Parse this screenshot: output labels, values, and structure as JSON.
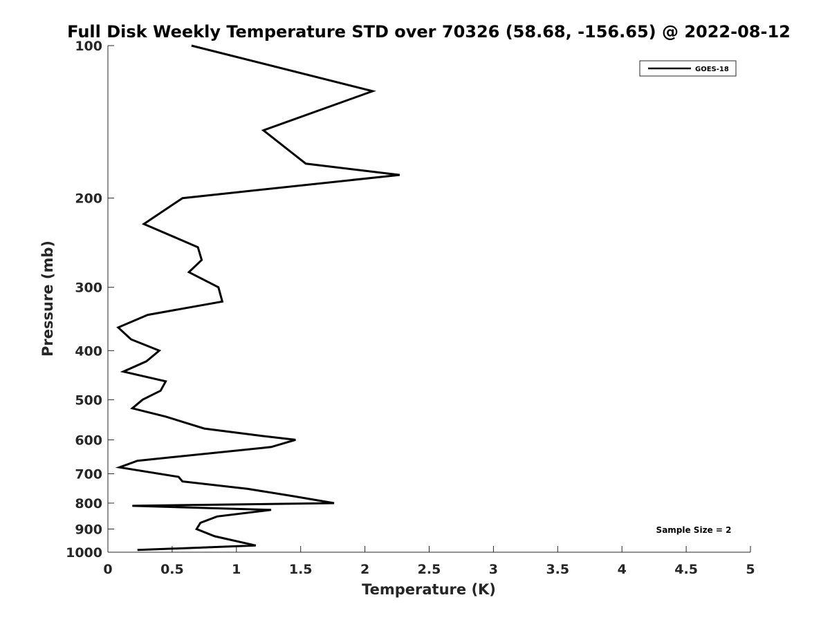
{
  "chart_data": {
    "type": "line",
    "title": "Full Disk Weekly Temperature STD over 70326 (58.68, -156.65) @ 2022-08-12",
    "xlabel": "Temperature (K)",
    "ylabel": "Pressure (mb)",
    "xlim": [
      0,
      5
    ],
    "ylim": [
      100,
      1000
    ],
    "y_scale": "log",
    "y_reversed": true,
    "x_ticks": [
      "0",
      "0.5",
      "1",
      "1.5",
      "2",
      "2.5",
      "3",
      "3.5",
      "4",
      "4.5",
      "5"
    ],
    "y_ticks": [
      100,
      200,
      300,
      400,
      500,
      600,
      700,
      800,
      900,
      1000
    ],
    "grid": false,
    "legend_position": "top-right",
    "annotation": "Sample Size = 2",
    "series": [
      {
        "name": "GOES-18",
        "color": "#000000",
        "x": [
          0.65,
          2.06,
          1.21,
          1.54,
          2.27,
          0.58,
          0.28,
          0.7,
          0.73,
          0.63,
          0.86,
          0.89,
          0.31,
          0.08,
          0.18,
          0.4,
          0.3,
          0.12,
          0.45,
          0.41,
          0.27,
          0.19,
          0.45,
          0.75,
          1.21,
          1.46,
          1.27,
          0.23,
          0.09,
          0.55,
          0.58,
          1.09,
          1.44,
          1.76,
          0.19,
          1.27,
          0.85,
          0.72,
          0.69,
          0.83,
          1.15,
          0.23
        ],
        "y": [
          100,
          123,
          147,
          171,
          180,
          200,
          225,
          250,
          265,
          280,
          300,
          320,
          340,
          360,
          380,
          400,
          420,
          440,
          460,
          480,
          500,
          520,
          540,
          570,
          590,
          600,
          620,
          660,
          680,
          710,
          725,
          750,
          775,
          800,
          810,
          825,
          850,
          875,
          900,
          930,
          970,
          990
        ]
      }
    ]
  }
}
